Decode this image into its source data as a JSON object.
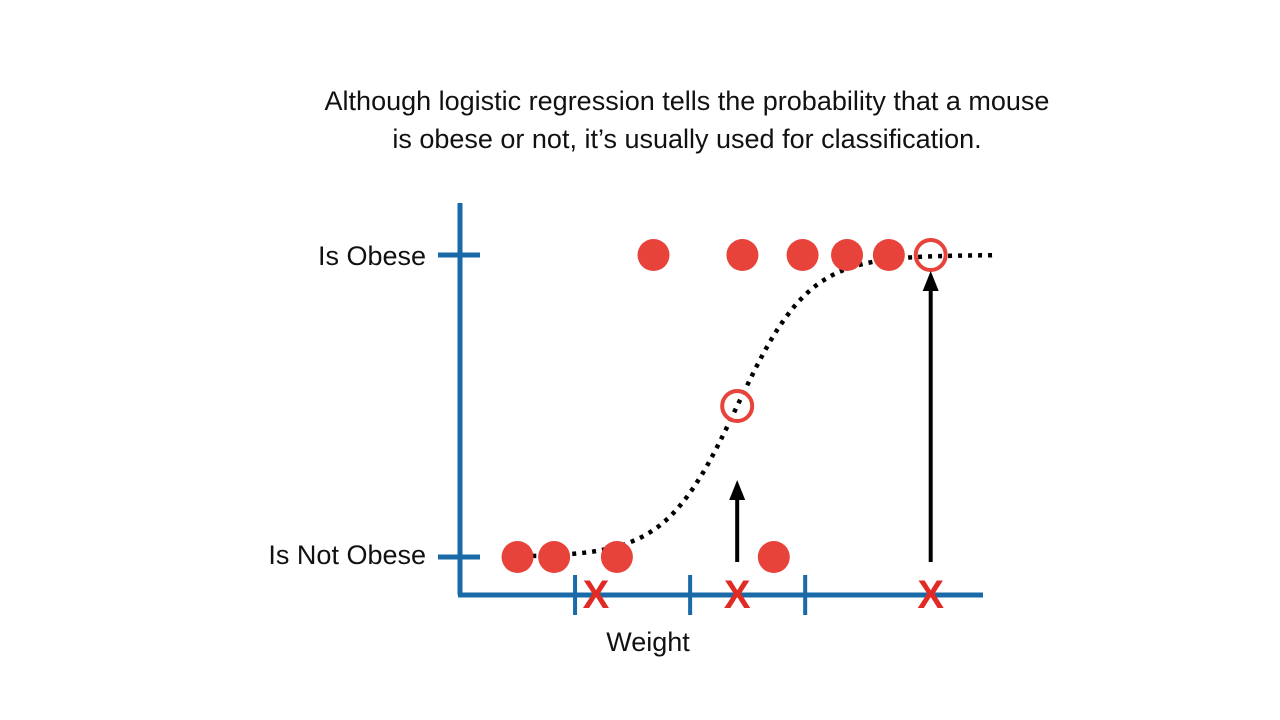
{
  "caption": {
    "line1": "Although logistic regression tells the probability that a mouse",
    "line2": "is obese or not, it’s usually used for classification."
  },
  "colors": {
    "axis": "#1a6aa8",
    "point": "#e8433a",
    "marker": "#e02b24",
    "curve": "#000000",
    "arrow": "#000000"
  },
  "chart_data": {
    "type": "scatter",
    "title": "",
    "xlabel": "Weight",
    "ylabel": "",
    "y_tick_labels": [
      "Is Not Obese",
      "Is Obese"
    ],
    "y_tick_values": [
      0,
      1
    ],
    "xlim": [
      0,
      10
    ],
    "ylim": [
      -0.12,
      1.15
    ],
    "x_ticks": [
      2.2,
      4.4,
      6.6
    ],
    "points_obese": [
      3.7,
      5.4,
      6.55,
      7.4,
      8.2
    ],
    "points_not_obese": [
      1.1,
      1.8,
      3.0,
      6.0
    ],
    "logistic_curve": {
      "x_start": 1.0,
      "x_end": 10.2,
      "midpoint": 5.3,
      "steepness": 1.45
    },
    "classified_points": [
      {
        "x": 5.3,
        "p": 0.5,
        "marker": "X"
      },
      {
        "x": 9.0,
        "p": 1.0,
        "marker": "X"
      }
    ],
    "x_markers": [
      2.6,
      5.3,
      9.0
    ],
    "marker_label": "X",
    "grid": false
  }
}
